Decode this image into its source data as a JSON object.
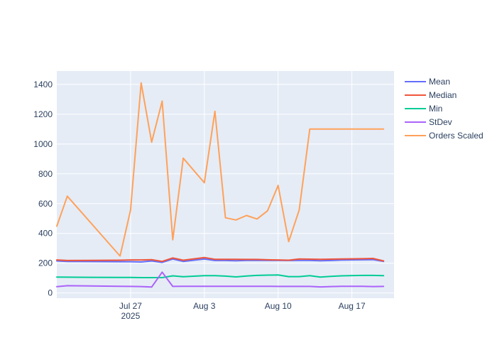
{
  "chart_data": {
    "type": "line",
    "title": "",
    "xlabel": "",
    "ylabel": "",
    "x_range": [
      "2025-07-20",
      "2025-08-21"
    ],
    "ylim": [
      -35,
      1490
    ],
    "y_ticks": [
      0,
      200,
      400,
      600,
      800,
      1000,
      1200,
      1400
    ],
    "x_ticks": [
      {
        "date": "2025-07-27",
        "label": "Jul 27",
        "sublabel": "2025"
      },
      {
        "date": "2025-08-03",
        "label": "Aug 3",
        "sublabel": ""
      },
      {
        "date": "2025-08-10",
        "label": "Aug 10",
        "sublabel": ""
      },
      {
        "date": "2025-08-17",
        "label": "Aug 17",
        "sublabel": ""
      }
    ],
    "grid": true,
    "legend_position": "right",
    "plot_background": "#e5ecf6",
    "x": [
      "2025-07-20",
      "2025-07-21",
      "2025-07-26",
      "2025-07-27",
      "2025-07-28",
      "2025-07-29",
      "2025-07-30",
      "2025-07-31",
      "2025-08-01",
      "2025-08-03",
      "2025-08-04",
      "2025-08-05",
      "2025-08-06",
      "2025-08-07",
      "2025-08-08",
      "2025-08-09",
      "2025-08-10",
      "2025-08-11",
      "2025-08-12",
      "2025-08-13",
      "2025-08-14",
      "2025-08-15",
      "2025-08-16",
      "2025-08-18",
      "2025-08-19",
      "2025-08-20"
    ],
    "series": [
      {
        "name": "Mean",
        "color": "#636efa",
        "values": [
          215,
          212,
          210,
          210,
          208,
          215,
          205,
          228,
          212,
          228,
          218,
          218,
          216,
          219,
          219,
          219,
          219,
          218,
          219,
          219,
          216,
          218,
          221,
          223,
          224,
          212
        ]
      },
      {
        "name": "Median",
        "color": "#ef553b",
        "values": [
          222,
          218,
          220,
          222,
          222,
          224,
          212,
          235,
          220,
          238,
          226,
          226,
          226,
          225,
          225,
          223,
          222,
          220,
          228,
          227,
          226,
          227,
          228,
          230,
          232,
          215
        ]
      },
      {
        "name": "Min",
        "color": "#00cc96",
        "values": [
          107,
          106,
          104,
          104,
          103,
          103,
          103,
          115,
          109,
          116,
          116,
          113,
          108,
          114,
          118,
          120,
          121,
          110,
          110,
          116,
          107,
          112,
          115,
          118,
          118,
          116
        ]
      },
      {
        "name": "StDev",
        "color": "#ab63fa",
        "values": [
          42,
          49,
          45,
          44,
          43,
          40,
          140,
          44,
          45,
          45,
          45,
          45,
          45,
          45,
          45,
          45,
          44,
          44,
          44,
          44,
          41,
          43,
          45,
          45,
          43,
          44
        ]
      },
      {
        "name": "Orders Scaled",
        "color": "#ffa15a",
        "values": [
          448,
          650,
          248,
          557,
          1410,
          1012,
          1288,
          357,
          905,
          740,
          1220,
          505,
          490,
          520,
          497,
          552,
          722,
          345,
          557,
          1100,
          1100,
          1100,
          1100,
          1100,
          1100,
          1100
        ]
      }
    ]
  }
}
